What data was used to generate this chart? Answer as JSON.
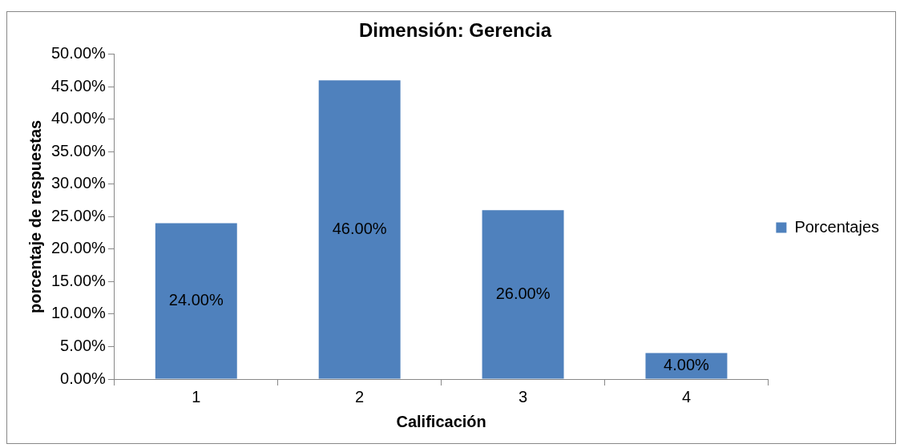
{
  "chart_data": {
    "type": "bar",
    "title": "Dimensión: Gerencia",
    "xlabel": "Calificación",
    "ylabel": "porcentaje de respuestas",
    "categories": [
      "1",
      "2",
      "3",
      "4"
    ],
    "series": [
      {
        "name": "Porcentajes",
        "color": "#4f81bd",
        "values": [
          24,
          46,
          26,
          4
        ],
        "value_labels": [
          "24.00%",
          "46.00%",
          "26.00%",
          "4.00%"
        ]
      }
    ],
    "ylim": [
      0,
      50
    ],
    "yticks": [
      {
        "value": 0,
        "label": "0.00%"
      },
      {
        "value": 5,
        "label": "5.00%"
      },
      {
        "value": 10,
        "label": "10.00%"
      },
      {
        "value": 15,
        "label": "15.00%"
      },
      {
        "value": 20,
        "label": "20.00%"
      },
      {
        "value": 25,
        "label": "25.00%"
      },
      {
        "value": 30,
        "label": "30.00%"
      },
      {
        "value": 35,
        "label": "35.00%"
      },
      {
        "value": 40,
        "label": "40.00%"
      },
      {
        "value": 45,
        "label": "45.00%"
      },
      {
        "value": 50,
        "label": "50.00%"
      }
    ],
    "grid": false,
    "legend": "right"
  }
}
